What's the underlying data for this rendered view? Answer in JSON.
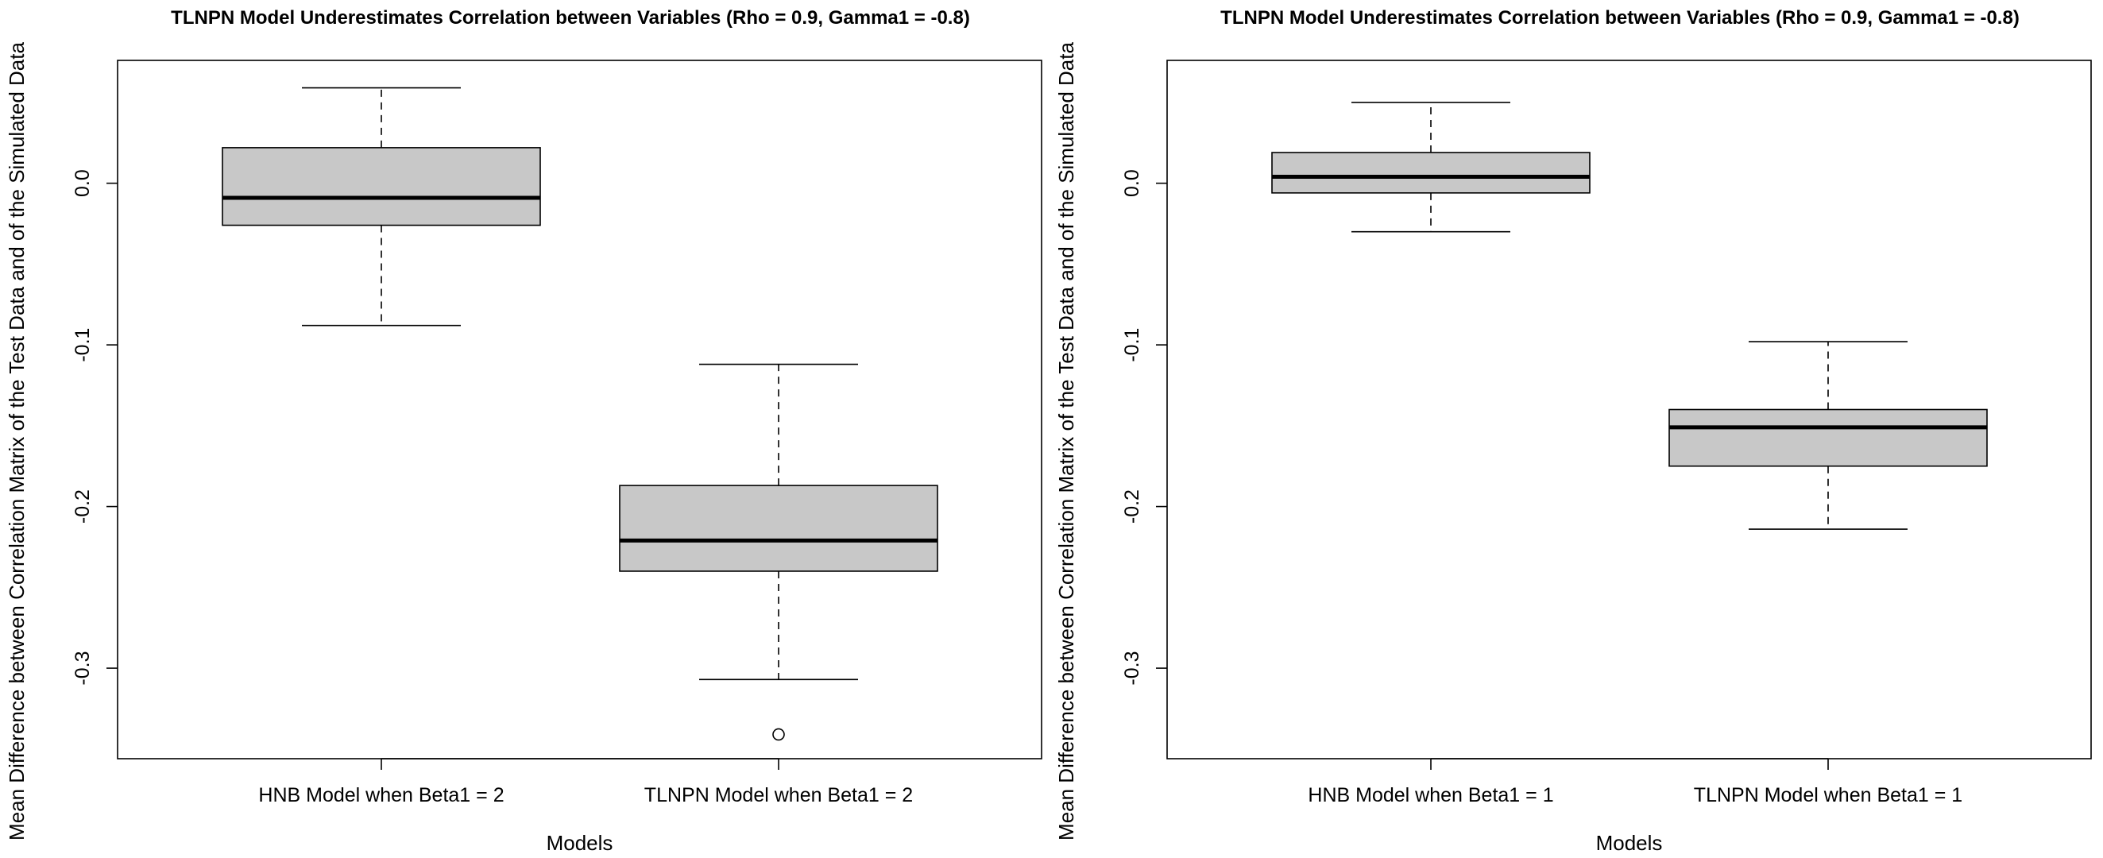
{
  "chart_data": [
    {
      "type": "box",
      "title": "TLNPN Model Underestimates Correlation between Variables (Rho = 0.9, Gamma1 = -0.8)",
      "xlabel": "Models",
      "ylabel": "Mean Difference between Correlation Matrix of the Test Data and of the Simulated Data",
      "ylim": [
        -0.356,
        0.076
      ],
      "yticks": [
        0.0,
        -0.1,
        -0.2,
        -0.3
      ],
      "ytick_labels": [
        "0.0",
        "-0.1",
        "-0.2",
        "-0.3"
      ],
      "categories": [
        "HNB Model when Beta1 = 2",
        "TLNPN Model when Beta1 = 2"
      ],
      "boxes": [
        {
          "whisker_low": -0.088,
          "q1": -0.026,
          "median": -0.009,
          "q3": 0.022,
          "whisker_high": 0.059,
          "outliers": []
        },
        {
          "whisker_low": -0.307,
          "q1": -0.24,
          "median": -0.221,
          "q3": -0.187,
          "whisker_high": -0.112,
          "outliers": [
            -0.341
          ]
        }
      ],
      "box_fill": "#c8c8c8",
      "grid": false
    },
    {
      "type": "box",
      "title": "TLNPN Model Underestimates Correlation between Variables (Rho = 0.9, Gamma1 = -0.8)",
      "xlabel": "Models",
      "ylabel": "Mean Difference between Correlation Matrix of the Test Data and of the Simulated Data",
      "ylim": [
        -0.356,
        0.076
      ],
      "yticks": [
        0.0,
        -0.1,
        -0.2,
        -0.3
      ],
      "ytick_labels": [
        "0.0",
        "-0.1",
        "-0.2",
        "-0.3"
      ],
      "categories": [
        "HNB Model when Beta1 = 1",
        "TLNPN Model when Beta1 = 1"
      ],
      "boxes": [
        {
          "whisker_low": -0.03,
          "q1": -0.006,
          "median": 0.004,
          "q3": 0.019,
          "whisker_high": 0.05,
          "outliers": []
        },
        {
          "whisker_low": -0.214,
          "q1": -0.175,
          "median": -0.151,
          "q3": -0.14,
          "whisker_high": -0.098,
          "outliers": []
        }
      ],
      "box_fill": "#c8c8c8",
      "grid": false
    }
  ]
}
